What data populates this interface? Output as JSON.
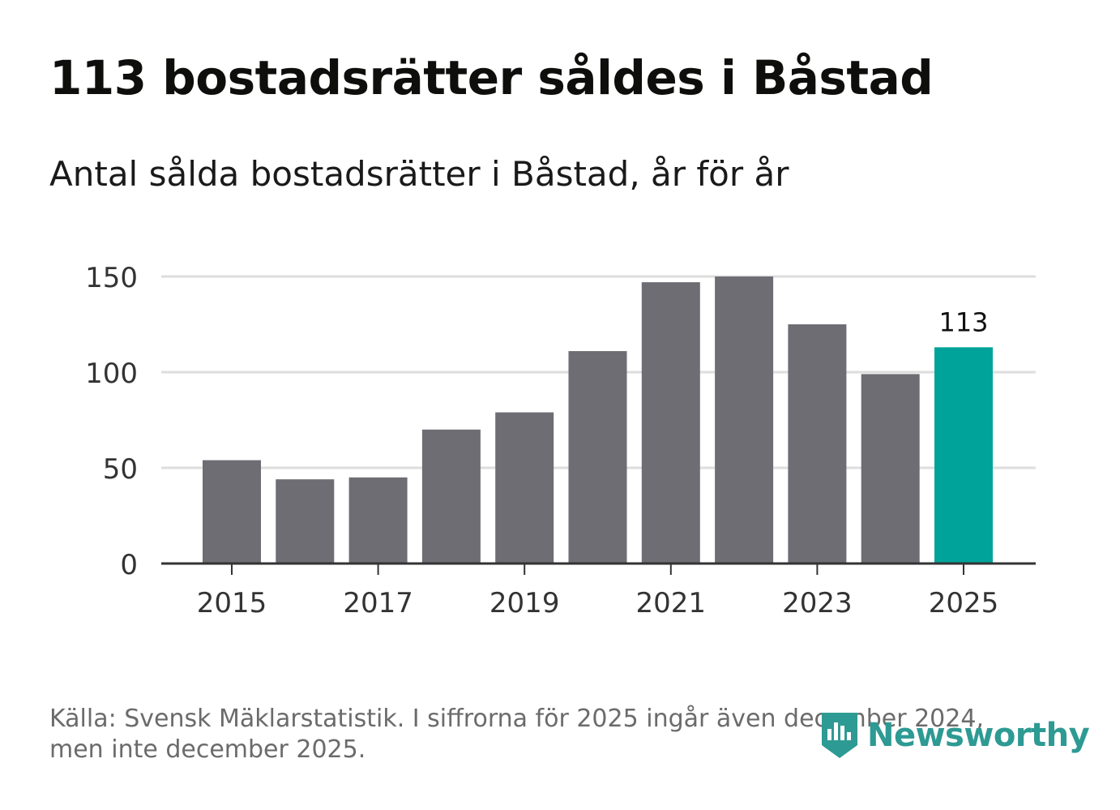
{
  "header": {
    "title": "113 bostadsrätter såldes i Båstad",
    "subtitle": "Antal sålda bostadsrätter i Båstad, år för år"
  },
  "footer": {
    "source_line1": "Källa: Svensk Mäklarstatistik. I siffrorna för 2025 ingår även december 2024,",
    "source_line2": "men inte december 2025.",
    "brand": "Newsworthy"
  },
  "colors": {
    "bar": "#6e6d73",
    "highlight": "#00a39a",
    "grid": "#dddddd",
    "axis": "#333333",
    "brand": "#2d9a93"
  },
  "chart_data": {
    "type": "bar",
    "title": "Antal sålda bostadsrätter i Båstad, år för år",
    "xlabel": "",
    "ylabel": "",
    "categories": [
      "2015",
      "2016",
      "2017",
      "2018",
      "2019",
      "2020",
      "2021",
      "2022",
      "2023",
      "2024",
      "2025"
    ],
    "values": [
      54,
      44,
      45,
      70,
      79,
      111,
      147,
      150,
      125,
      99,
      113
    ],
    "highlight_index": 10,
    "data_labels": [
      {
        "index": 10,
        "text": "113"
      }
    ],
    "ylim": [
      0,
      150
    ],
    "yticks": [
      0,
      50,
      100,
      150
    ],
    "xticks": [
      "2015",
      "2017",
      "2019",
      "2021",
      "2023",
      "2025"
    ],
    "grid": true
  }
}
